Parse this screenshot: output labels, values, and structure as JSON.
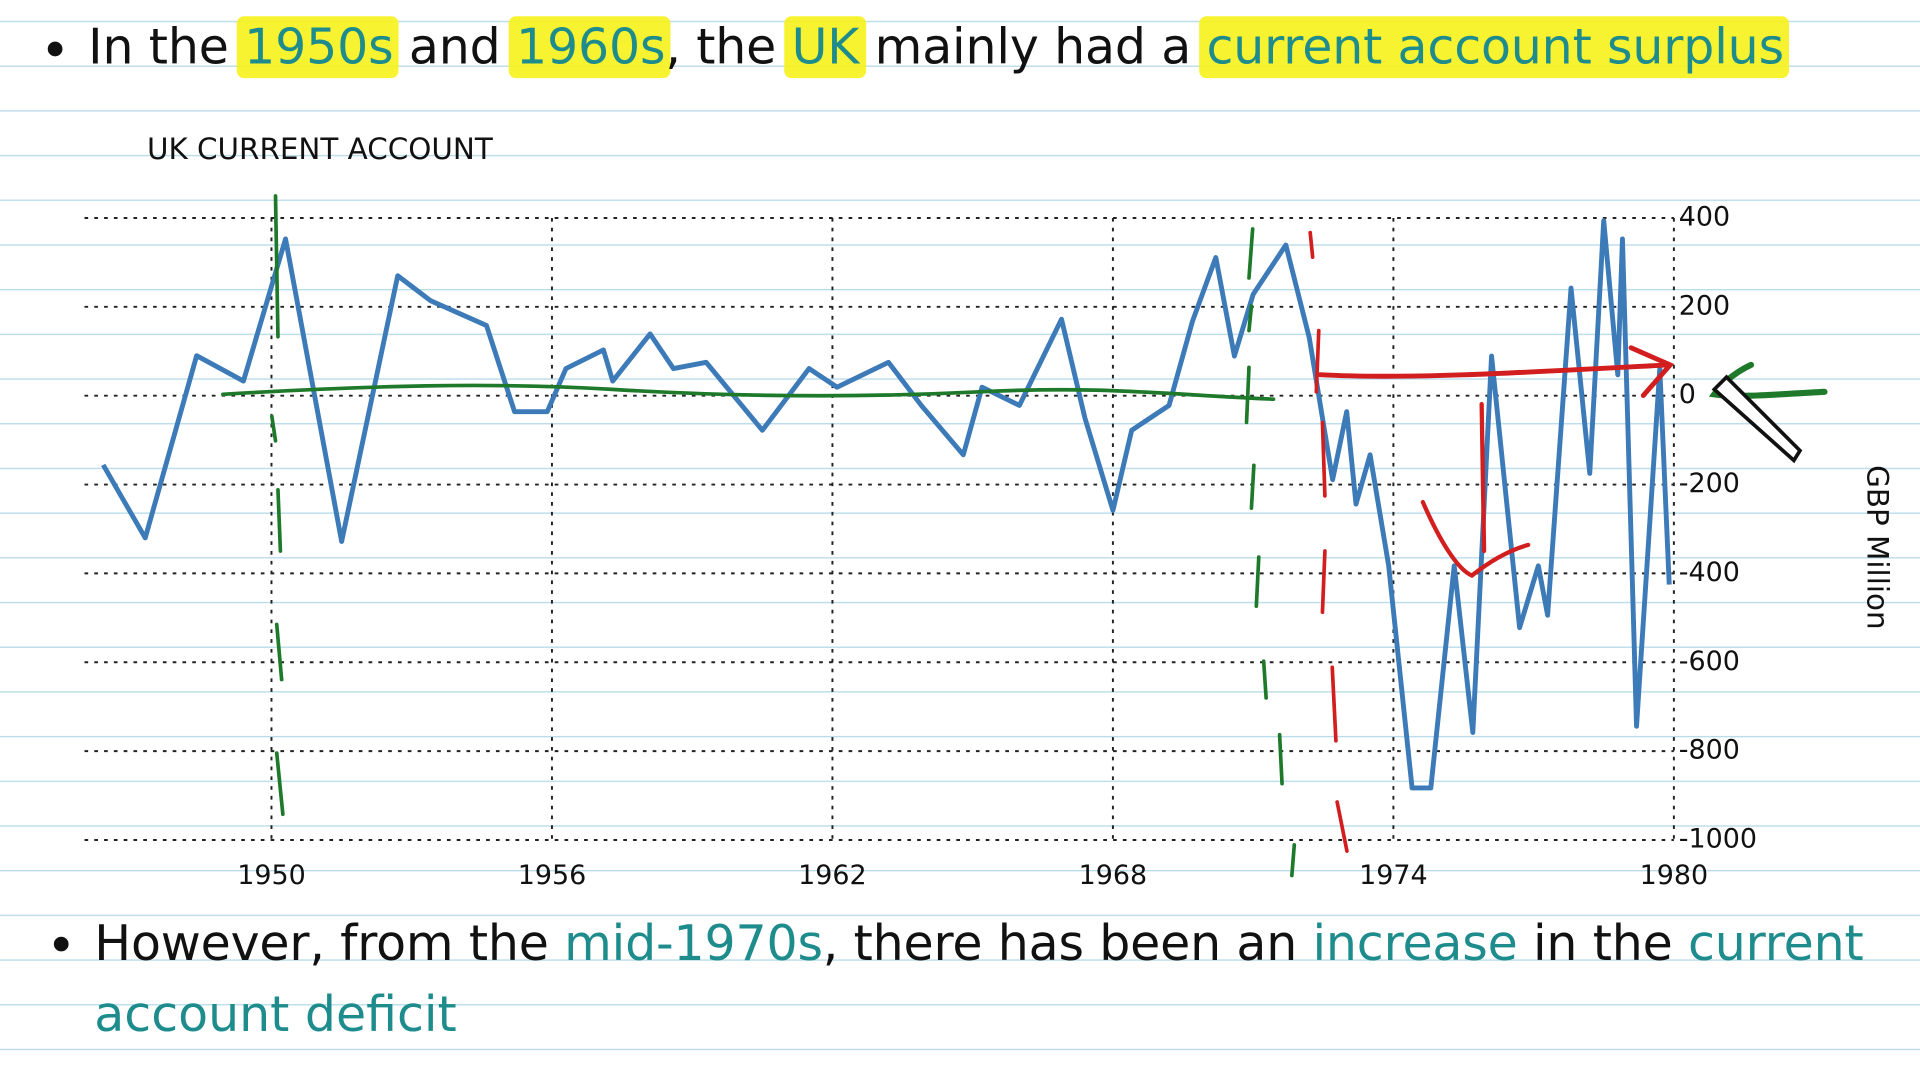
{
  "bullets": [
    [
      "In the ",
      "1950s",
      " and ",
      "1960s",
      ", the ",
      "UK",
      " mainly had a ",
      "current account surplus"
    ],
    [
      "However, from the ",
      "mid-1970s",
      ", there has been an ",
      "increase",
      " in the ",
      "current",
      "account deficit"
    ]
  ],
  "chart_data": {
    "type": "line",
    "title": "UK CURRENT ACCOUNT",
    "y_label": "GBP Million",
    "x": [
      1946.4,
      1947.3,
      1948.4,
      1949.4,
      1950.3,
      1951.5,
      1952.7,
      1953.4,
      1954.6,
      1955.2,
      1955.9,
      1956.3,
      1957.1,
      1957.3,
      1958.1,
      1958.6,
      1959.3,
      1960.5,
      1961.5,
      1962.1,
      1963.2,
      1963.9,
      1964.8,
      1965.2,
      1966.0,
      1966.9,
      1967.4,
      1968.0,
      1968.4,
      1969.2,
      1969.7,
      1970.2,
      1970.6,
      1971.0,
      1971.7,
      1972.2,
      1972.7,
      1973.0,
      1973.2,
      1973.5,
      1973.9,
      1974.4,
      1974.8,
      1975.3,
      1975.7,
      1976.1,
      1976.7,
      1977.1,
      1977.3,
      1977.8,
      1978.2,
      1978.5,
      1978.8,
      1978.9,
      1979.2,
      1979.7,
      1979.9
    ],
    "series": [
      {
        "name": "UK current account",
        "color": "#3d7ab8",
        "values": [
          -156,
          -320,
          90,
          33,
          353,
          -328,
          270,
          214,
          158,
          -36,
          -36,
          61,
          103,
          33,
          139,
          61,
          75,
          -78,
          61,
          19,
          75,
          -22,
          -133,
          19,
          -22,
          172,
          -50,
          -258,
          -78,
          -22,
          167,
          311,
          89,
          228,
          339,
          131,
          -189,
          -36,
          -244,
          -133,
          -383,
          -883,
          -883,
          -383,
          -758,
          89,
          -522,
          -383,
          -494,
          242,
          -175,
          394,
          47,
          353,
          -744,
          61,
          -425
        ]
      }
    ],
    "xlim": [
      1946,
      1980
    ],
    "xticks": [
      1950,
      1956,
      1962,
      1968,
      1974,
      1980
    ],
    "ylim": [
      -1000,
      400
    ],
    "yticks": [
      -1000,
      -800,
      -600,
      -400,
      -200,
      0,
      200,
      400
    ],
    "grid": true
  }
}
